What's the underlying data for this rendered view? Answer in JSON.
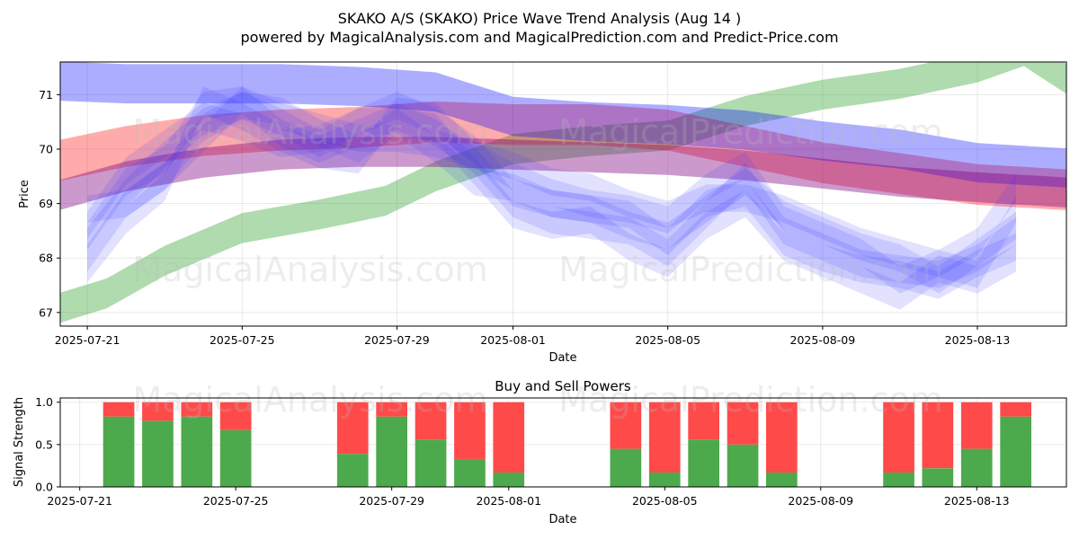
{
  "chart_data": [
    {
      "type": "area",
      "title": "SKAKO A/S (SKAKO) Price Wave Trend Analysis (Aug 14 )",
      "subtitle": "powered by MagicalAnalysis.com and MagicalPrediction.com and Predict-Price.com",
      "xlabel": "Date",
      "ylabel": "Price",
      "xlim": [
        -0.7,
        25.3
      ],
      "ylim": [
        66.75,
        71.6
      ],
      "x_ticks": [
        {
          "label": "2025-07-21",
          "x": 0
        },
        {
          "label": "2025-07-25",
          "x": 4
        },
        {
          "label": "2025-07-29",
          "x": 8
        },
        {
          "label": "2025-08-01",
          "x": 11
        },
        {
          "label": "2025-08-05",
          "x": 15
        },
        {
          "label": "2025-08-09",
          "x": 19
        },
        {
          "label": "2025-08-13",
          "x": 23
        }
      ],
      "y_ticks": [
        67,
        68,
        69,
        70,
        71
      ],
      "grid": true,
      "series": [
        {
          "name": "green-band",
          "color": "#2ca02c",
          "opacity": 0.38,
          "width": 0.55,
          "x": [
            -1.1,
            0.5,
            2,
            4,
            6,
            7.7,
            9,
            11,
            13,
            15,
            17,
            19,
            21,
            23,
            24.2,
            25.6
          ],
          "y": [
            67.0,
            67.35,
            67.95,
            68.55,
            68.8,
            69.05,
            69.5,
            70.0,
            70.15,
            70.25,
            70.7,
            71.0,
            71.2,
            71.5,
            71.8,
            71.15
          ]
        },
        {
          "name": "red-band",
          "color": "#ff0000",
          "opacity": 0.33,
          "width": 0.75,
          "x": [
            -1.0,
            1,
            3,
            5,
            7,
            9,
            11,
            13,
            15,
            17,
            19,
            21,
            23,
            25.4
          ],
          "y": [
            69.75,
            70.05,
            70.25,
            70.35,
            70.4,
            70.5,
            70.45,
            70.45,
            70.35,
            70.05,
            69.75,
            69.55,
            69.35,
            69.25
          ]
        },
        {
          "name": "blue-band",
          "color": "#0000ff",
          "opacity": 0.32,
          "width": 0.72,
          "x": [
            -0.8,
            1,
            3,
            5,
            7,
            9,
            11,
            13,
            15,
            17,
            19,
            21,
            23,
            25.4
          ],
          "y": [
            71.25,
            71.2,
            71.2,
            71.2,
            71.15,
            71.05,
            70.6,
            70.5,
            70.45,
            70.35,
            70.15,
            70.0,
            69.75,
            69.65
          ]
        },
        {
          "name": "purple-band",
          "color": "#800080",
          "opacity": 0.4,
          "width": 0.55,
          "x": [
            -1.0,
            1,
            3,
            5,
            7,
            9,
            11,
            13,
            15,
            17,
            19,
            21,
            23,
            25.4
          ],
          "y": [
            69.1,
            69.5,
            69.75,
            69.9,
            69.95,
            69.95,
            69.9,
            69.85,
            69.8,
            69.7,
            69.55,
            69.4,
            69.3,
            69.2
          ]
        },
        {
          "name": "blue-wave-1",
          "color": "#3333ff",
          "opacity": 0.14,
          "width": 0.5,
          "x": [
            0,
            1,
            2,
            3,
            4,
            5,
            6,
            7,
            8,
            9,
            10,
            11,
            12,
            13,
            14,
            15,
            16,
            17,
            18,
            19,
            20,
            21,
            22,
            23,
            24
          ],
          "y": [
            68.0,
            69.0,
            69.5,
            70.4,
            70.8,
            70.5,
            70.1,
            70.5,
            70.8,
            70.5,
            70.0,
            69.2,
            69.0,
            68.9,
            68.8,
            68.3,
            69.0,
            69.2,
            68.3,
            68.0,
            67.8,
            67.7,
            67.5,
            67.9,
            68.2
          ]
        },
        {
          "name": "blue-wave-2",
          "color": "#3333ff",
          "opacity": 0.14,
          "width": 0.5,
          "x": [
            0,
            1,
            2,
            3,
            4,
            5,
            6,
            7,
            8,
            9,
            10,
            11,
            12,
            13,
            14,
            15,
            16,
            17,
            18,
            19,
            20,
            21,
            22,
            23,
            24
          ],
          "y": [
            68.4,
            69.4,
            69.8,
            70.8,
            70.9,
            70.3,
            70.0,
            70.3,
            70.6,
            70.3,
            69.8,
            69.0,
            68.7,
            68.6,
            68.5,
            68.1,
            68.8,
            69.5,
            68.5,
            68.2,
            67.9,
            67.8,
            67.7,
            68.0,
            68.5
          ]
        },
        {
          "name": "blue-wave-3",
          "color": "#3333ff",
          "opacity": 0.14,
          "width": 0.5,
          "x": [
            0,
            1,
            2,
            3,
            4,
            5,
            6,
            7,
            8,
            9,
            10,
            11,
            12,
            13,
            14,
            15,
            16,
            17,
            18,
            19,
            20,
            21,
            22,
            23,
            24
          ],
          "y": [
            67.8,
            68.7,
            69.3,
            70.9,
            70.6,
            70.2,
            69.9,
            69.8,
            70.7,
            70.6,
            69.9,
            69.5,
            69.2,
            69.0,
            68.9,
            68.7,
            69.3,
            69.7,
            68.7,
            68.4,
            68.1,
            67.6,
            67.9,
            67.7,
            68.9
          ]
        },
        {
          "name": "blue-wave-4",
          "color": "#3333ff",
          "opacity": 0.14,
          "width": 0.5,
          "x": [
            0,
            1,
            2,
            3,
            4,
            5,
            6,
            7,
            8,
            9,
            10,
            11,
            12,
            13,
            14,
            15,
            16,
            17,
            18,
            19,
            20,
            21,
            22,
            23,
            24
          ],
          "y": [
            68.3,
            69.2,
            69.9,
            70.5,
            70.8,
            70.7,
            70.3,
            70.0,
            70.5,
            70.4,
            69.6,
            68.8,
            68.6,
            68.7,
            68.2,
            67.9,
            68.6,
            69.0,
            68.2,
            67.9,
            67.6,
            67.3,
            67.8,
            67.6,
            68.0
          ]
        },
        {
          "name": "blue-wave-5",
          "color": "#3333ff",
          "opacity": 0.14,
          "width": 0.5,
          "x": [
            0,
            1,
            2,
            3,
            4,
            5,
            6,
            7,
            8,
            9,
            10,
            11,
            12,
            13,
            14,
            15,
            16,
            17,
            18,
            19,
            20,
            21,
            22,
            23,
            24
          ],
          "y": [
            68.6,
            69.6,
            70.1,
            70.6,
            70.4,
            70.1,
            70.2,
            70.5,
            70.5,
            70.0,
            69.4,
            69.3,
            69.0,
            68.9,
            68.6,
            68.4,
            68.9,
            69.4,
            68.8,
            68.5,
            68.2,
            68.0,
            67.6,
            68.1,
            68.6
          ]
        },
        {
          "name": "blue-wave-6",
          "color": "#3333ff",
          "opacity": 0.14,
          "width": 0.5,
          "x": [
            0,
            1,
            2,
            3,
            4,
            5,
            6,
            7,
            8,
            9,
            10,
            11,
            12,
            13,
            14,
            15,
            16,
            17,
            18,
            19,
            20,
            21,
            22,
            23,
            24
          ],
          "y": [
            68.9,
            69.0,
            69.5,
            70.2,
            70.9,
            70.6,
            70.4,
            70.2,
            70.2,
            70.1,
            69.9,
            69.7,
            69.4,
            69.3,
            69.0,
            68.8,
            69.1,
            69.1,
            68.9,
            68.6,
            68.3,
            68.1,
            67.9,
            68.3,
            69.3
          ]
        }
      ]
    },
    {
      "type": "bar",
      "title": "Buy and Sell Powers",
      "xlabel": "Date",
      "ylabel": "Signal Strength",
      "xlim": [
        -0.5,
        25.3
      ],
      "ylim": [
        0,
        1.05
      ],
      "x_ticks": [
        {
          "label": "2025-07-21",
          "x": 0
        },
        {
          "label": "2025-07-25",
          "x": 4
        },
        {
          "label": "2025-07-29",
          "x": 8
        },
        {
          "label": "2025-08-01",
          "x": 11
        },
        {
          "label": "2025-08-05",
          "x": 15
        },
        {
          "label": "2025-08-09",
          "x": 19
        },
        {
          "label": "2025-08-13",
          "x": 23
        }
      ],
      "y_ticks": [
        0.0,
        0.5,
        1.0
      ],
      "grid": true,
      "x": [
        1,
        2,
        3,
        4,
        7,
        8,
        9,
        10,
        11,
        14,
        15,
        16,
        17,
        18,
        21,
        22,
        23,
        24
      ],
      "series": [
        {
          "name": "Buy",
          "color": "#4caa4c",
          "values": [
            0.83,
            0.78,
            0.83,
            0.67,
            0.39,
            0.83,
            0.56,
            0.33,
            0.17,
            0.45,
            0.17,
            0.56,
            0.5,
            0.17,
            0.17,
            0.22,
            0.45,
            0.83
          ]
        },
        {
          "name": "Sell",
          "color": "#ff4a4a",
          "values": [
            0.17,
            0.22,
            0.17,
            0.33,
            0.61,
            0.17,
            0.44,
            0.67,
            0.83,
            0.55,
            0.83,
            0.44,
            0.5,
            0.83,
            0.83,
            0.78,
            0.55,
            0.17
          ]
        }
      ]
    }
  ],
  "watermarks": [
    "MagicalAnalysis.com",
    "MagicalPrediction.com"
  ]
}
